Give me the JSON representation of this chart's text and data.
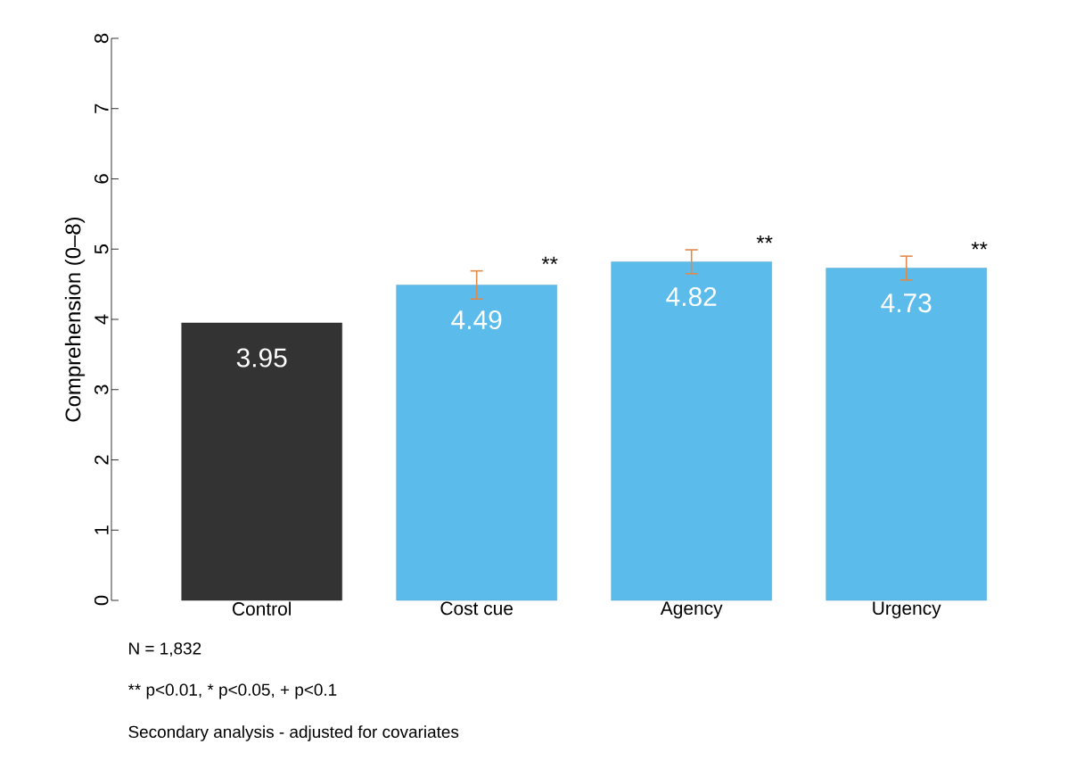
{
  "chart_data": {
    "type": "bar",
    "ylabel": "Comprehension (0–8)",
    "categories": [
      "Control",
      "Cost cue",
      "Agency",
      "Urgency"
    ],
    "values": [
      3.95,
      4.49,
      4.82,
      4.73
    ],
    "colors": [
      "#333333",
      "#5bbcec",
      "#5bbcec",
      "#5bbcec"
    ],
    "errors": [
      null,
      0.2,
      0.17,
      0.17
    ],
    "data_labels": true,
    "ylim": [
      0,
      8
    ],
    "yticks": [
      0,
      1,
      2,
      3,
      4,
      5,
      6,
      7,
      8
    ],
    "grid": false,
    "annotations": [
      "**",
      "**",
      "**",
      "N =  1,832",
      "** p<0.01, * p<0.05, + p<0.1",
      "Secondary analysis - adjusted for covariates"
    ]
  }
}
